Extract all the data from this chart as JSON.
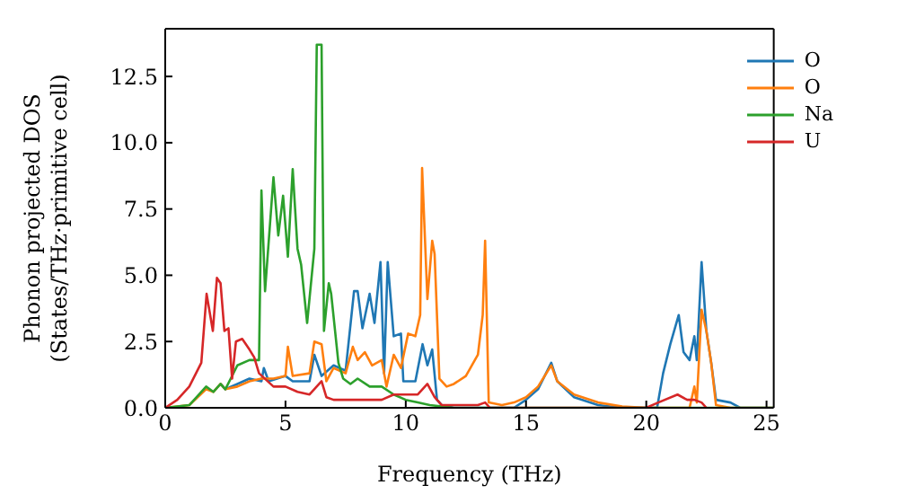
{
  "chart_data": {
    "type": "line",
    "xlabel": "Frequency (THz)",
    "ylabel": "Phonon projected DOS\n(States/THz·primitive cell)",
    "xlim": [
      0,
      25.3
    ],
    "ylim": [
      0,
      14.3
    ],
    "xticks": [
      0,
      5,
      10,
      15,
      20,
      25
    ],
    "yticks": [
      {
        "value": 0,
        "label": "0.0"
      },
      {
        "value": 2.5,
        "label": "2.5"
      },
      {
        "value": 5,
        "label": "5.0"
      },
      {
        "value": 7.5,
        "label": "7.5"
      },
      {
        "value": 10,
        "label": "10.0"
      },
      {
        "value": 12.5,
        "label": "12.5"
      }
    ],
    "legend": "top right",
    "grid": false,
    "marker": "none",
    "line_style": "solid",
    "series": [
      {
        "name": "O",
        "color": "#1f77b4",
        "x": [
          2.3,
          2.5,
          3,
          3.5,
          4,
          4.1,
          4.3,
          5,
          5.3,
          6,
          6.2,
          6.5,
          7,
          7.5,
          7.85,
          8,
          8.2,
          8.5,
          8.7,
          8.95,
          9.1,
          9.25,
          9.5,
          9.8,
          9.9,
          10.4,
          10.7,
          10.9,
          11.1,
          11.3,
          11.5,
          12,
          14.5,
          15,
          15.5,
          16.05,
          16.3,
          17,
          18,
          19,
          20.45,
          20.7,
          21,
          21.35,
          21.55,
          21.8,
          22,
          22.1,
          22.3,
          22.5,
          22.7,
          22.9,
          23.5,
          23.9,
          25.3
        ],
        "values": [
          0.9,
          0.7,
          0.9,
          1.1,
          1,
          1.5,
          1,
          1.2,
          1,
          1,
          2,
          1.2,
          1.6,
          1.4,
          4.4,
          4.4,
          3,
          4.3,
          3.2,
          5.5,
          1.3,
          5.5,
          2.7,
          2.8,
          1,
          1,
          2.4,
          1.6,
          2.2,
          0.3,
          0.1,
          0,
          0,
          0.3,
          0.7,
          1.7,
          1,
          0.4,
          0.1,
          0,
          0,
          1.3,
          2.4,
          3.5,
          2.1,
          1.8,
          2.7,
          1.8,
          5.5,
          2.9,
          1.7,
          0.3,
          0.2,
          0,
          0
        ]
      },
      {
        "name": "O",
        "color": "#ff7f0e",
        "x": [
          0,
          1,
          1.7,
          2,
          2.3,
          2.5,
          3,
          3.5,
          4,
          4.5,
          5,
          5.1,
          5.3,
          6,
          6.2,
          6.5,
          6.7,
          7,
          7.5,
          7.8,
          8,
          8.3,
          8.6,
          9,
          9.2,
          9.5,
          9.8,
          10.1,
          10.4,
          10.6,
          10.68,
          10.9,
          11.1,
          11.2,
          11.4,
          11.7,
          12,
          12.5,
          13,
          13.2,
          13.3,
          13.45,
          14,
          14.5,
          15,
          15.5,
          16.05,
          16.3,
          17,
          18,
          19,
          20,
          21.8,
          22,
          22.1,
          22.3,
          22.5,
          22.7,
          22.9,
          23.5,
          25.3
        ],
        "values": [
          0,
          0.1,
          0.7,
          0.6,
          0.9,
          0.7,
          0.8,
          1,
          1.1,
          1.1,
          1.2,
          2.3,
          1.2,
          1.3,
          2.5,
          2.4,
          1,
          1.5,
          1.3,
          2.3,
          1.8,
          2.1,
          1.6,
          1.8,
          0.8,
          2,
          1.5,
          2.8,
          2.7,
          3.5,
          9.05,
          4.1,
          6.3,
          5.8,
          1.1,
          0.8,
          0.9,
          1.2,
          2,
          3.5,
          6.3,
          0.2,
          0.1,
          0.2,
          0.4,
          0.8,
          1.6,
          1,
          0.5,
          0.2,
          0.05,
          0,
          0,
          0.8,
          0.2,
          3.7,
          2.9,
          1.7,
          0.1,
          0,
          0
        ]
      },
      {
        "name": "Na",
        "color": "#2ca02c",
        "x": [
          0,
          1,
          1.7,
          2,
          2.3,
          2.5,
          3,
          3.5,
          3.9,
          4,
          4.15,
          4.5,
          4.7,
          4.9,
          5.1,
          5.3,
          5.5,
          5.65,
          5.9,
          6.2,
          6.3,
          6.5,
          6.6,
          6.8,
          6.9,
          7.2,
          7.4,
          7.7,
          8,
          8.5,
          9,
          9.5,
          10,
          10.5,
          11,
          12,
          25.3
        ],
        "values": [
          0,
          0.1,
          0.8,
          0.6,
          0.9,
          0.7,
          1.6,
          1.8,
          1.8,
          8.2,
          4.4,
          8.7,
          6.5,
          8,
          5.7,
          9,
          6,
          5.4,
          3.2,
          6,
          13.7,
          13.7,
          2.9,
          4.7,
          4.3,
          1.7,
          1.1,
          0.9,
          1.1,
          0.8,
          0.8,
          0.5,
          0.3,
          0.2,
          0.1,
          0,
          0
        ]
      },
      {
        "name": "U",
        "color": "#d62728",
        "x": [
          0,
          0.5,
          1,
          1.5,
          1.72,
          1.98,
          2.15,
          2.3,
          2.46,
          2.63,
          2.78,
          2.94,
          3.2,
          3.5,
          3.7,
          3.9,
          4.5,
          5,
          5.5,
          6,
          6.5,
          6.7,
          7,
          8,
          9,
          9.5,
          10,
          10.5,
          10.9,
          11.2,
          11.5,
          13,
          13.3,
          13.5,
          20,
          20.5,
          21.3,
          21.7,
          22,
          22.3,
          22.5
        ],
        "values": [
          0,
          0.3,
          0.8,
          1.7,
          4.3,
          2.9,
          4.9,
          4.7,
          2.9,
          3,
          1.1,
          2.5,
          2.6,
          2.2,
          1.9,
          1.3,
          0.8,
          0.8,
          0.6,
          0.5,
          1,
          0.4,
          0.3,
          0.3,
          0.3,
          0.5,
          0.5,
          0.5,
          0.9,
          0.4,
          0.1,
          0.1,
          0.2,
          0,
          0,
          0.2,
          0.5,
          0.3,
          0.3,
          0.2,
          0
        ]
      }
    ]
  }
}
